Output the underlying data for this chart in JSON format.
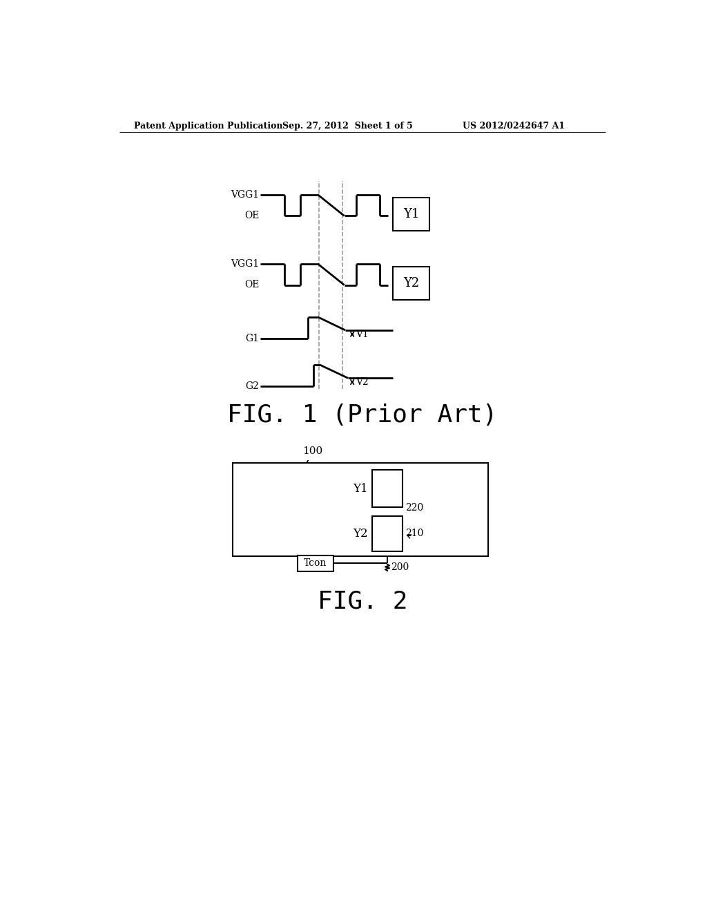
{
  "header_left": "Patent Application Publication",
  "header_mid": "Sep. 27, 2012  Sheet 1 of 5",
  "header_right": "US 2012/0242647 A1",
  "fig1_label": "FIG. 1 (Prior Art)",
  "fig2_label": "FIG. 2",
  "bg_color": "#ffffff"
}
